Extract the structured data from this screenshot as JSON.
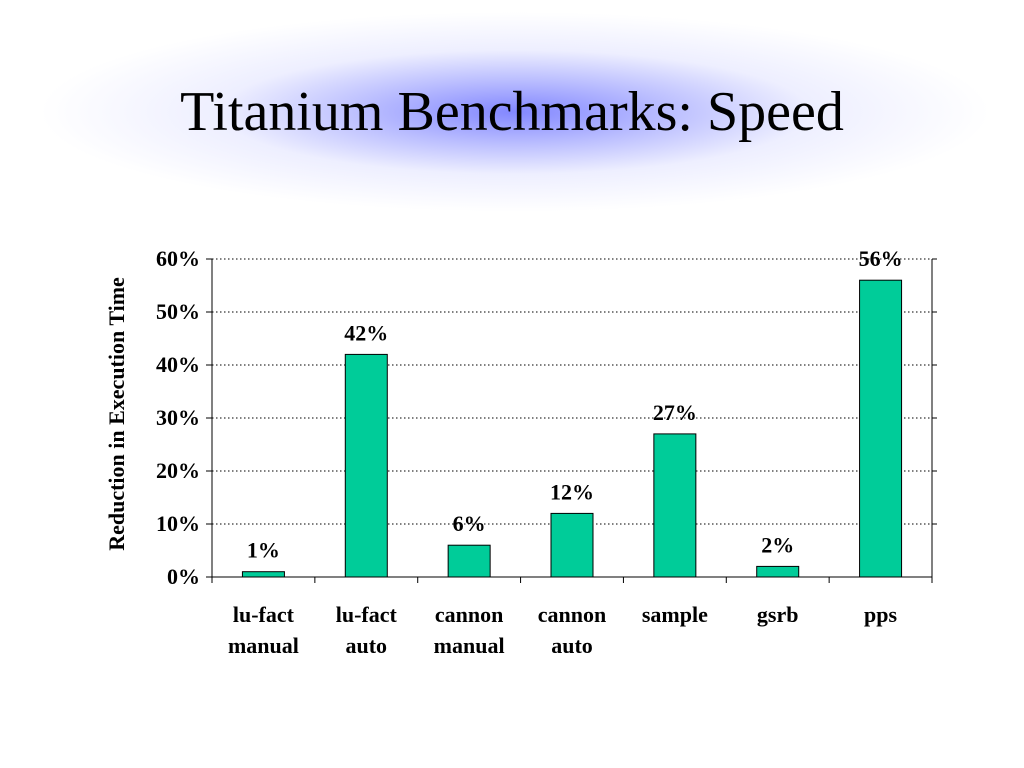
{
  "slide": {
    "title": "Titanium Benchmarks: Speed"
  },
  "colors": {
    "bar": "#00CC99",
    "bar_stroke": "#000000",
    "grid": "#000000",
    "title_glow": "#7B80FF"
  },
  "chart_data": {
    "type": "bar",
    "title": "",
    "xlabel": "",
    "ylabel": "Reduction in Execution Time",
    "ylim": [
      0,
      60
    ],
    "yticks": [
      0,
      10,
      20,
      30,
      40,
      50,
      60
    ],
    "ytick_labels": [
      "0%",
      "10%",
      "20%",
      "30%",
      "40%",
      "50%",
      "60%"
    ],
    "grid": "horizontal dotted",
    "legend": "none",
    "categories": [
      [
        "lu-fact",
        "manual"
      ],
      [
        "lu-fact",
        "auto"
      ],
      [
        "cannon",
        "manual"
      ],
      [
        "cannon",
        "auto"
      ],
      [
        "sample"
      ],
      [
        "gsrb"
      ],
      [
        "pps"
      ]
    ],
    "values": [
      1,
      42,
      6,
      12,
      27,
      2,
      56
    ],
    "value_labels": [
      "1%",
      "42%",
      "6%",
      "12%",
      "27%",
      "2%",
      "56%"
    ]
  }
}
